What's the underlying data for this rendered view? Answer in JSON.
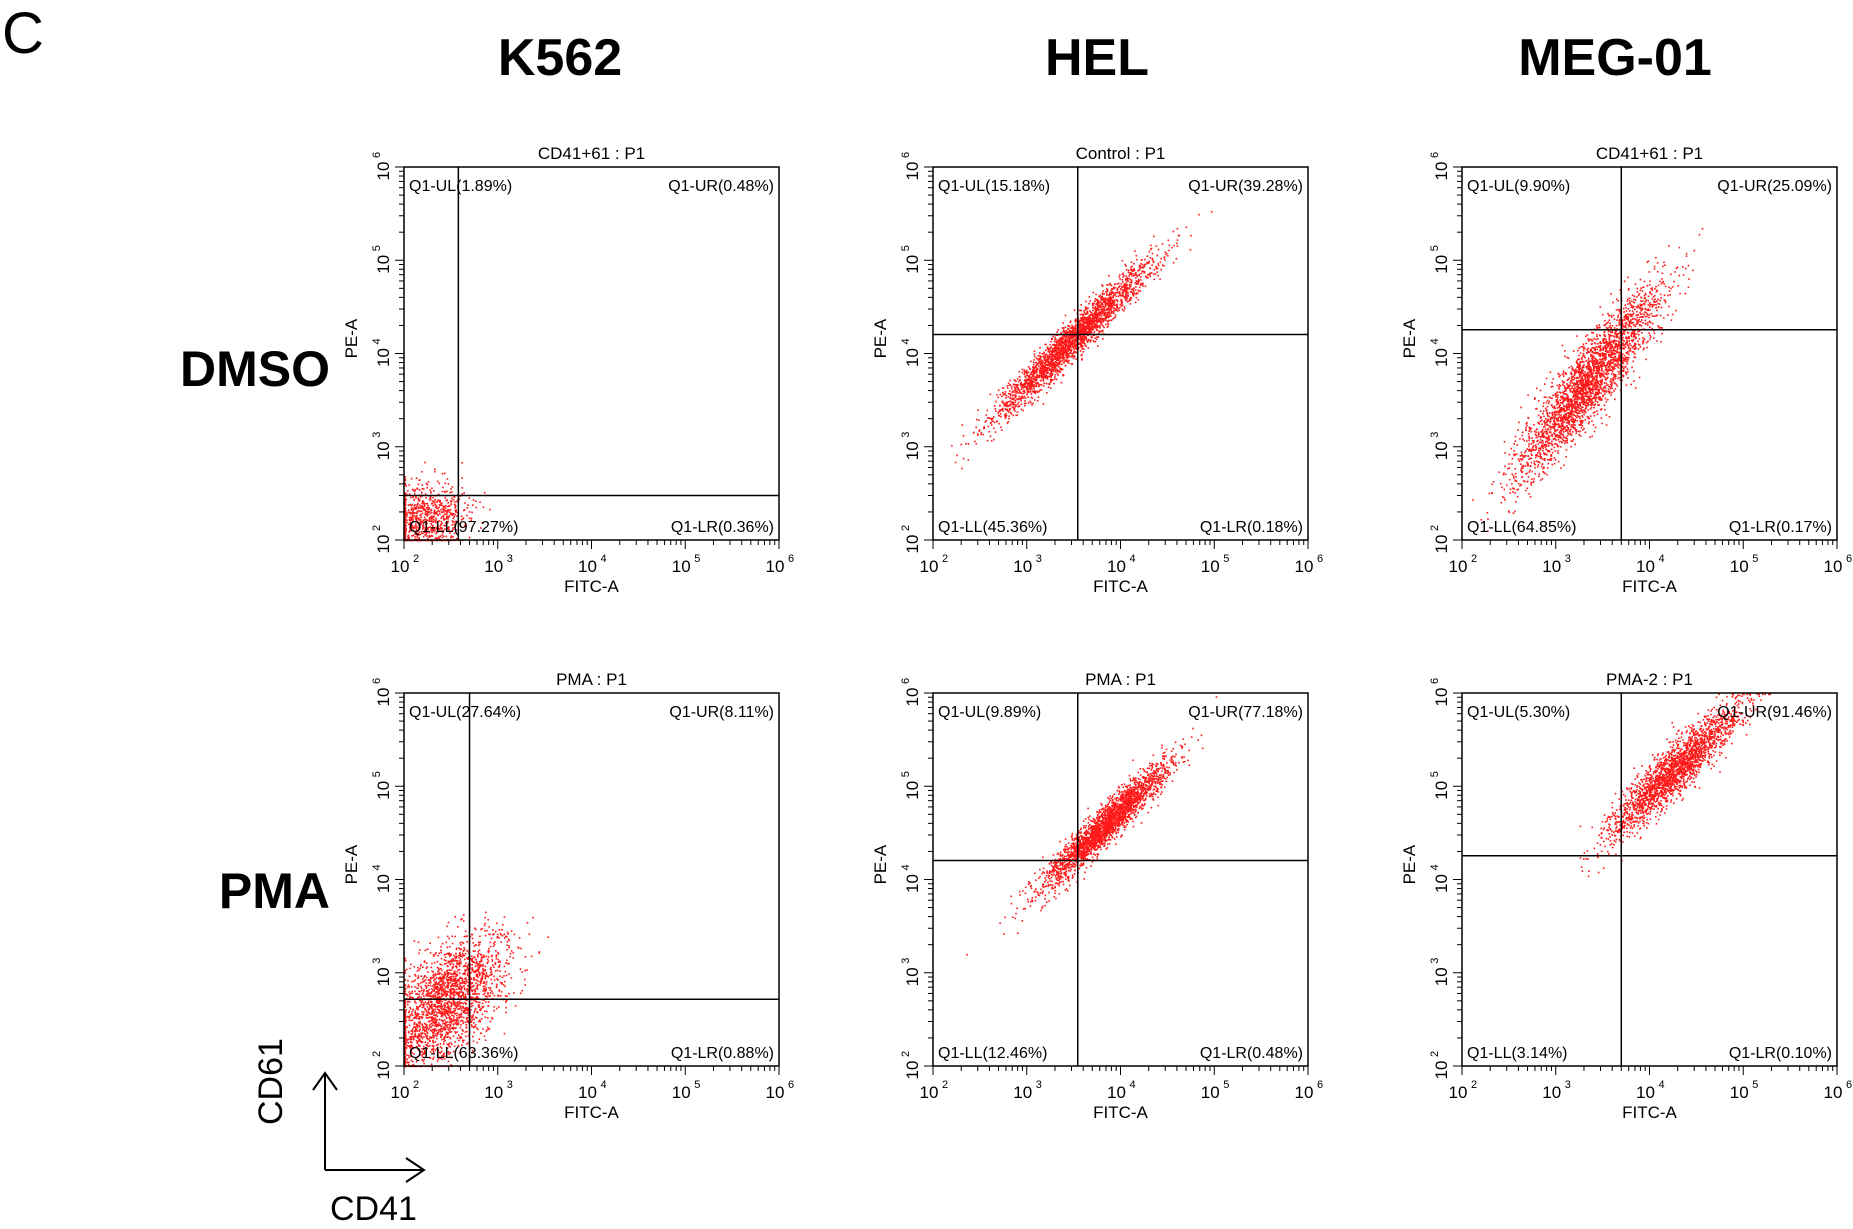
{
  "panel_label": "C",
  "column_titles": [
    "K562",
    "HEL",
    "MEG-01"
  ],
  "row_titles": [
    "DMSO",
    "PMA"
  ],
  "axis_key": {
    "y": "CD61",
    "x": "CD41"
  },
  "colors": {
    "points": "#ff1a1a",
    "gates": "#000000"
  },
  "chart_data": [
    {
      "type": "scatter",
      "title": "CD41+61 : P1",
      "xlabel": "FITC-A",
      "ylabel": "PE-A",
      "scale": "log",
      "xlim": [
        100,
        1000000
      ],
      "ylim": [
        100,
        1000000
      ],
      "xticks": [
        "10",
        "10",
        "10",
        "10",
        "10"
      ],
      "tick_exponents": [
        "2",
        "3",
        "4",
        "5",
        "6"
      ],
      "gate": {
        "x": 380,
        "y": 300
      },
      "quadrants": {
        "UL": "Q1-UL(1.89%)",
        "UR": "Q1-UR(0.48%)",
        "LL": "Q1-LL(97.27%)",
        "LR": "Q1-LR(0.36%)"
      },
      "population": {
        "center_x": 160,
        "center_y": 160,
        "spread_x": 0.22,
        "spread_y": 0.22,
        "corr": 0.2,
        "count": 900
      }
    },
    {
      "type": "scatter",
      "title": "Control : P1",
      "xlabel": "FITC-A",
      "ylabel": "PE-A",
      "scale": "log",
      "xlim": [
        100,
        1000000
      ],
      "ylim": [
        100,
        1000000
      ],
      "xticks": [
        "10",
        "10",
        "10",
        "10",
        "10"
      ],
      "tick_exponents": [
        "2",
        "3",
        "4",
        "5",
        "6"
      ],
      "gate": {
        "x": 3500,
        "y": 16000
      },
      "quadrants": {
        "UL": "Q1-UL(15.18%)",
        "UR": "Q1-UR(39.28%)",
        "LL": "Q1-LL(45.36%)",
        "LR": "Q1-LR(0.18%)"
      },
      "population": {
        "center_x": 3000,
        "center_y": 14000,
        "spread_x": 0.42,
        "spread_y": 0.42,
        "corr": 0.97,
        "count": 2600
      }
    },
    {
      "type": "scatter",
      "title": "CD41+61 : P1",
      "xlabel": "FITC-A",
      "ylabel": "PE-A",
      "scale": "log",
      "xlim": [
        100,
        1000000
      ],
      "ylim": [
        100,
        1000000
      ],
      "xticks": [
        "10",
        "10",
        "10",
        "10",
        "10"
      ],
      "tick_exponents": [
        "2",
        "3",
        "4",
        "5",
        "6"
      ],
      "gate": {
        "x": 5000,
        "y": 18000
      },
      "quadrants": {
        "UL": "Q1-UL(9.90%)",
        "UR": "Q1-UR(25.09%)",
        "LL": "Q1-LL(64.85%)",
        "LR": "Q1-LR(0.17%)"
      },
      "population": {
        "center_x": 2200,
        "center_y": 5000,
        "spread_x": 0.38,
        "spread_y": 0.5,
        "corr": 0.9,
        "count": 2800
      }
    },
    {
      "type": "scatter",
      "title": "PMA : P1",
      "xlabel": "FITC-A",
      "ylabel": "PE-A",
      "scale": "log",
      "xlim": [
        100,
        1000000
      ],
      "ylim": [
        100,
        1000000
      ],
      "xticks": [
        "10",
        "10",
        "10",
        "10",
        "10"
      ],
      "tick_exponents": [
        "2",
        "3",
        "4",
        "5",
        "6"
      ],
      "gate": {
        "x": 500,
        "y": 520
      },
      "quadrants": {
        "UL": "Q1-UL(27.64%)",
        "UR": "Q1-UR(8.11%)",
        "LL": "Q1-LL(63.36%)",
        "LR": "Q1-LR(0.88%)"
      },
      "population": {
        "center_x": 280,
        "center_y": 500,
        "spread_x": 0.3,
        "spread_y": 0.35,
        "corr": 0.55,
        "count": 2200
      }
    },
    {
      "type": "scatter",
      "title": "PMA : P1",
      "xlabel": "FITC-A",
      "ylabel": "PE-A",
      "scale": "log",
      "xlim": [
        100,
        1000000
      ],
      "ylim": [
        100,
        1000000
      ],
      "xticks": [
        "10",
        "10",
        "10",
        "10",
        "10"
      ],
      "tick_exponents": [
        "2",
        "3",
        "4",
        "5",
        "6"
      ],
      "gate": {
        "x": 3500,
        "y": 16000
      },
      "quadrants": {
        "UL": "Q1-UL(9.89%)",
        "UR": "Q1-UR(77.18%)",
        "LL": "Q1-LL(12.46%)",
        "LR": "Q1-LR(0.48%)"
      },
      "population": {
        "center_x": 7000,
        "center_y": 40000,
        "spread_x": 0.33,
        "spread_y": 0.33,
        "corr": 0.95,
        "count": 2600
      }
    },
    {
      "type": "scatter",
      "title": "PMA-2 : P1",
      "xlabel": "FITC-A",
      "ylabel": "PE-A",
      "scale": "log",
      "xlim": [
        100,
        1000000
      ],
      "ylim": [
        100,
        1000000
      ],
      "xticks": [
        "10",
        "10",
        "10",
        "10",
        "10"
      ],
      "tick_exponents": [
        "2",
        "3",
        "4",
        "5",
        "6"
      ],
      "gate": {
        "x": 5000,
        "y": 18000
      },
      "quadrants": {
        "UL": "Q1-UL(5.30%)",
        "UR": "Q1-UR(91.46%)",
        "LL": "Q1-LL(3.14%)",
        "LR": "Q1-LR(0.10%)"
      },
      "population": {
        "center_x": 18000,
        "center_y": 150000,
        "spread_x": 0.35,
        "spread_y": 0.35,
        "corr": 0.92,
        "count": 2200
      }
    }
  ]
}
